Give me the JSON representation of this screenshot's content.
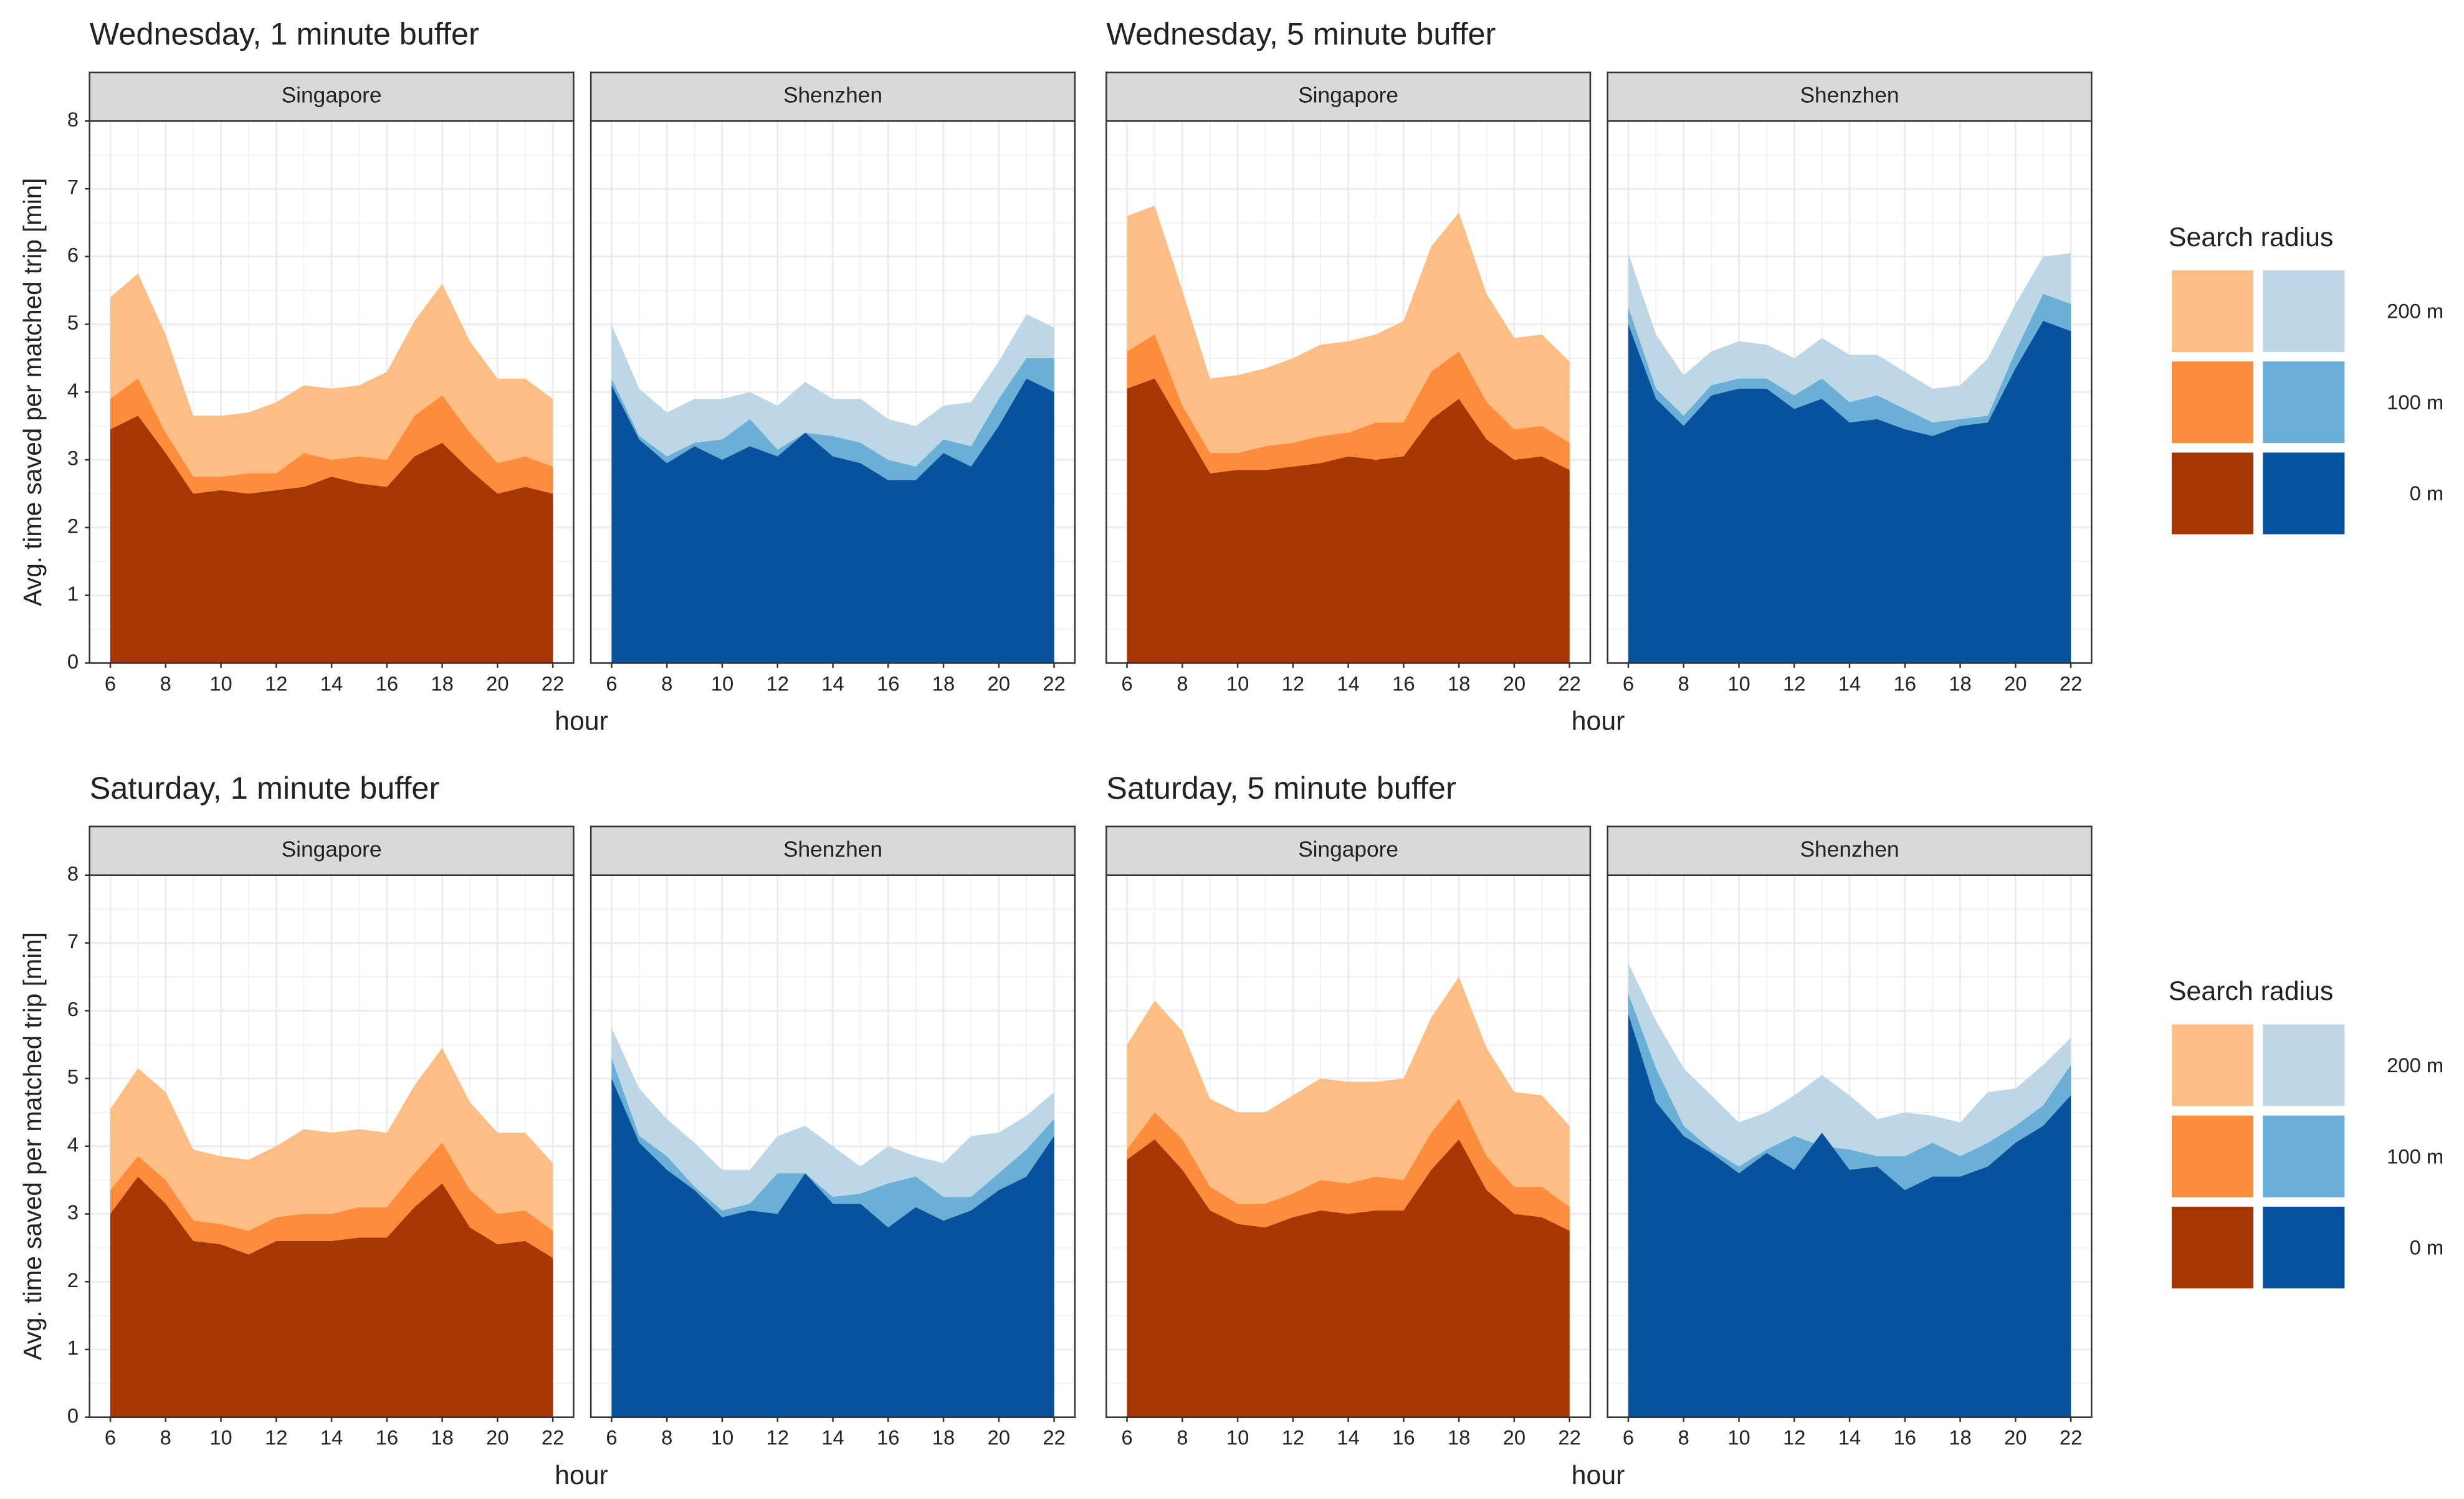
{
  "chart_data": [
    {
      "type": "area",
      "title": "Wednesday, 1 minute buffer",
      "x_label": "hour",
      "y_label": "Avg. time saved per matched trip [min]",
      "x": [
        6,
        7,
        8,
        9,
        10,
        11,
        12,
        13,
        14,
        15,
        16,
        17,
        18,
        19,
        20,
        21,
        22
      ],
      "xlim": [
        5.25,
        22.75
      ],
      "xticks": [
        6,
        8,
        10,
        12,
        14,
        16,
        18,
        20,
        22
      ],
      "ylim": [
        0,
        8
      ],
      "yticks": [
        0,
        1,
        2,
        3,
        4,
        5,
        6,
        7,
        8
      ],
      "grid": true,
      "facets": [
        {
          "title": "Singapore",
          "series": [
            {
              "color": "#fdbe85",
              "values": [
                5.4,
                5.75,
                4.85,
                3.65,
                3.65,
                3.7,
                3.85,
                4.1,
                4.05,
                4.1,
                4.3,
                5.05,
                5.6,
                4.75,
                4.2,
                4.2,
                3.9
              ]
            },
            {
              "color": "#fd8d3c",
              "values": [
                3.9,
                4.2,
                3.4,
                2.75,
                2.75,
                2.8,
                2.8,
                3.1,
                3.0,
                3.05,
                3.0,
                3.65,
                3.95,
                3.4,
                2.95,
                3.05,
                2.9
              ]
            },
            {
              "color": "#a63603",
              "values": [
                3.45,
                3.65,
                3.1,
                2.5,
                2.55,
                2.5,
                2.55,
                2.6,
                2.75,
                2.65,
                2.6,
                3.05,
                3.25,
                2.85,
                2.5,
                2.6,
                2.5
              ]
            }
          ]
        },
        {
          "title": "Shenzhen",
          "series": [
            {
              "color": "#bdd7e7",
              "values": [
                5.0,
                4.05,
                3.7,
                3.9,
                3.9,
                4.0,
                3.8,
                4.15,
                3.9,
                3.9,
                3.6,
                3.5,
                3.8,
                3.85,
                4.45,
                5.15,
                4.95
              ]
            },
            {
              "color": "#6baed6",
              "values": [
                4.2,
                3.35,
                3.05,
                3.25,
                3.3,
                3.6,
                3.15,
                3.4,
                3.35,
                3.25,
                3.0,
                2.9,
                3.3,
                3.2,
                3.9,
                4.5,
                4.5
              ]
            },
            {
              "color": "#08519c",
              "values": [
                4.1,
                3.3,
                2.95,
                3.2,
                3.0,
                3.2,
                3.05,
                3.4,
                3.05,
                2.95,
                2.7,
                2.7,
                3.1,
                2.9,
                3.5,
                4.2,
                4.0
              ]
            }
          ]
        }
      ]
    },
    {
      "type": "area",
      "title": "Wednesday, 5 minute buffer",
      "x_label": "hour",
      "x": [
        6,
        7,
        8,
        9,
        10,
        11,
        12,
        13,
        14,
        15,
        16,
        17,
        18,
        19,
        20,
        21,
        22
      ],
      "xlim": [
        5.25,
        22.75
      ],
      "xticks": [
        6,
        8,
        10,
        12,
        14,
        16,
        18,
        20,
        22
      ],
      "ylim": [
        0,
        8
      ],
      "yticks": [
        0,
        1,
        2,
        3,
        4,
        5,
        6,
        7,
        8
      ],
      "grid": true,
      "legend": {
        "title": "Search radius",
        "labels": [
          "200 m",
          "100 m",
          "0 m"
        ]
      },
      "facets": [
        {
          "title": "Singapore",
          "series": [
            {
              "color": "#fdbe85",
              "values": [
                6.6,
                6.75,
                5.5,
                4.2,
                4.25,
                4.35,
                4.5,
                4.7,
                4.75,
                4.85,
                5.05,
                6.15,
                6.65,
                5.45,
                4.8,
                4.85,
                4.45
              ]
            },
            {
              "color": "#fd8d3c",
              "values": [
                4.6,
                4.85,
                3.8,
                3.1,
                3.1,
                3.2,
                3.25,
                3.35,
                3.4,
                3.55,
                3.55,
                4.3,
                4.6,
                3.85,
                3.45,
                3.5,
                3.25
              ]
            },
            {
              "color": "#a63603",
              "values": [
                4.05,
                4.2,
                3.5,
                2.8,
                2.85,
                2.85,
                2.9,
                2.95,
                3.05,
                3.0,
                3.05,
                3.6,
                3.9,
                3.3,
                3.0,
                3.05,
                2.85
              ]
            }
          ]
        },
        {
          "title": "Shenzhen",
          "series": [
            {
              "color": "#bdd7e7",
              "values": [
                6.05,
                4.85,
                4.25,
                4.6,
                4.75,
                4.7,
                4.5,
                4.8,
                4.55,
                4.55,
                4.3,
                4.05,
                4.1,
                4.5,
                5.3,
                6.0,
                6.05
              ]
            },
            {
              "color": "#6baed6",
              "values": [
                5.25,
                4.05,
                3.65,
                4.1,
                4.2,
                4.2,
                3.95,
                4.2,
                3.85,
                3.95,
                3.75,
                3.55,
                3.6,
                3.65,
                4.6,
                5.45,
                5.3
              ]
            },
            {
              "color": "#08519c",
              "values": [
                5.0,
                3.9,
                3.5,
                3.95,
                4.05,
                4.05,
                3.75,
                3.9,
                3.55,
                3.6,
                3.45,
                3.35,
                3.5,
                3.55,
                4.35,
                5.05,
                4.9
              ]
            }
          ]
        }
      ]
    },
    {
      "type": "area",
      "title": "Saturday, 1 minute buffer",
      "x_label": "hour",
      "y_label": "Avg. time saved per matched trip [min]",
      "x": [
        6,
        7,
        8,
        9,
        10,
        11,
        12,
        13,
        14,
        15,
        16,
        17,
        18,
        19,
        20,
        21,
        22
      ],
      "xlim": [
        5.25,
        22.75
      ],
      "xticks": [
        6,
        8,
        10,
        12,
        14,
        16,
        18,
        20,
        22
      ],
      "ylim": [
        0,
        8
      ],
      "yticks": [
        0,
        1,
        2,
        3,
        4,
        5,
        6,
        7,
        8
      ],
      "grid": true,
      "facets": [
        {
          "title": "Singapore",
          "series": [
            {
              "color": "#fdbe85",
              "values": [
                4.55,
                5.15,
                4.8,
                3.95,
                3.85,
                3.8,
                4.0,
                4.25,
                4.2,
                4.25,
                4.2,
                4.9,
                5.45,
                4.65,
                4.2,
                4.2,
                3.75
              ]
            },
            {
              "color": "#fd8d3c",
              "values": [
                3.35,
                3.85,
                3.5,
                2.9,
                2.85,
                2.75,
                2.95,
                3.0,
                3.0,
                3.1,
                3.1,
                3.6,
                4.05,
                3.35,
                3.0,
                3.05,
                2.75
              ]
            },
            {
              "color": "#a63603",
              "values": [
                3.0,
                3.55,
                3.15,
                2.6,
                2.55,
                2.4,
                2.6,
                2.6,
                2.6,
                2.65,
                2.65,
                3.1,
                3.45,
                2.8,
                2.55,
                2.6,
                2.35
              ]
            }
          ]
        },
        {
          "title": "Shenzhen",
          "series": [
            {
              "color": "#bdd7e7",
              "values": [
                5.75,
                4.85,
                4.4,
                4.05,
                3.65,
                3.65,
                4.15,
                4.3,
                4.0,
                3.7,
                4.0,
                3.85,
                3.75,
                4.15,
                4.2,
                4.45,
                4.8
              ]
            },
            {
              "color": "#6baed6",
              "values": [
                5.3,
                4.15,
                3.85,
                3.4,
                3.05,
                3.15,
                3.6,
                3.6,
                3.25,
                3.3,
                3.45,
                3.55,
                3.25,
                3.25,
                3.6,
                3.95,
                4.4
              ]
            },
            {
              "color": "#08519c",
              "values": [
                5.0,
                4.05,
                3.65,
                3.35,
                2.95,
                3.05,
                3.0,
                3.6,
                3.15,
                3.15,
                2.8,
                3.1,
                2.9,
                3.05,
                3.35,
                3.55,
                4.15
              ]
            }
          ]
        }
      ]
    },
    {
      "type": "area",
      "title": "Saturday, 5 minute buffer",
      "x_label": "hour",
      "x": [
        6,
        7,
        8,
        9,
        10,
        11,
        12,
        13,
        14,
        15,
        16,
        17,
        18,
        19,
        20,
        21,
        22
      ],
      "xlim": [
        5.25,
        22.75
      ],
      "xticks": [
        6,
        8,
        10,
        12,
        14,
        16,
        18,
        20,
        22
      ],
      "ylim": [
        0,
        8
      ],
      "yticks": [
        0,
        1,
        2,
        3,
        4,
        5,
        6,
        7,
        8
      ],
      "grid": true,
      "legend": {
        "title": "Search radius",
        "labels": [
          "200 m",
          "100 m",
          "0 m"
        ]
      },
      "facets": [
        {
          "title": "Singapore",
          "series": [
            {
              "color": "#fdbe85",
              "values": [
                5.5,
                6.15,
                5.7,
                4.7,
                4.5,
                4.5,
                4.75,
                5.0,
                4.95,
                4.95,
                5.0,
                5.9,
                6.5,
                5.45,
                4.8,
                4.75,
                4.3
              ]
            },
            {
              "color": "#fd8d3c",
              "values": [
                3.95,
                4.5,
                4.1,
                3.4,
                3.15,
                3.15,
                3.3,
                3.5,
                3.45,
                3.55,
                3.5,
                4.2,
                4.7,
                3.85,
                3.4,
                3.4,
                3.1
              ]
            },
            {
              "color": "#a63603",
              "values": [
                3.8,
                4.1,
                3.65,
                3.05,
                2.85,
                2.8,
                2.95,
                3.05,
                3.0,
                3.05,
                3.05,
                3.65,
                4.1,
                3.35,
                3.0,
                2.95,
                2.75
              ]
            }
          ]
        },
        {
          "title": "Shenzhen",
          "series": [
            {
              "color": "#bdd7e7",
              "values": [
                6.7,
                5.85,
                5.15,
                4.75,
                4.35,
                4.5,
                4.75,
                5.05,
                4.75,
                4.4,
                4.5,
                4.45,
                4.35,
                4.8,
                4.85,
                5.2,
                5.6
              ]
            },
            {
              "color": "#6baed6",
              "values": [
                6.25,
                5.15,
                4.3,
                3.95,
                3.7,
                3.95,
                4.15,
                4.0,
                3.95,
                3.85,
                3.85,
                4.05,
                3.85,
                4.05,
                4.3,
                4.6,
                5.2
              ]
            },
            {
              "color": "#08519c",
              "values": [
                5.95,
                4.65,
                4.15,
                3.9,
                3.6,
                3.9,
                3.65,
                4.2,
                3.65,
                3.7,
                3.35,
                3.55,
                3.55,
                3.7,
                4.05,
                4.3,
                4.75
              ]
            }
          ]
        }
      ]
    }
  ]
}
